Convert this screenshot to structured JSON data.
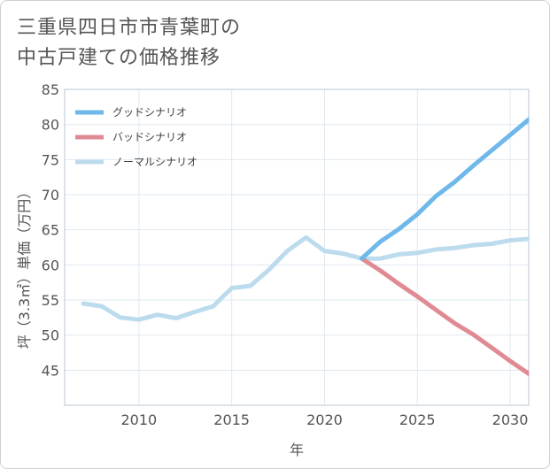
{
  "title": {
    "line1": "三重県四日市市青葉町の",
    "line2": "中古戸建ての価格推移"
  },
  "chart_data": {
    "type": "line",
    "xlabel": "年",
    "ylabel": "坪（3.3㎡）単価（万円）",
    "xlim": [
      2006,
      2031
    ],
    "ylim": [
      40,
      85
    ],
    "xticks": [
      2010,
      2015,
      2020,
      2025,
      2030
    ],
    "yticks": [
      45,
      50,
      55,
      60,
      65,
      70,
      75,
      80,
      85
    ],
    "grid": true,
    "legend_position": "top-left",
    "series": [
      {
        "name": "グッドシナリオ",
        "color": "#6fb8ea",
        "x": [
          2022,
          2023,
          2024,
          2025,
          2026,
          2027,
          2028,
          2029,
          2030,
          2031
        ],
        "y": [
          60.9,
          63.3,
          65.1,
          67.2,
          69.8,
          71.8,
          74.1,
          76.3,
          78.5,
          80.7
        ]
      },
      {
        "name": "バッドシナリオ",
        "color": "#e08b94",
        "x": [
          2022,
          2023,
          2024,
          2025,
          2026,
          2027,
          2028,
          2029,
          2030,
          2031
        ],
        "y": [
          60.9,
          59.2,
          57.3,
          55.5,
          53.6,
          51.7,
          50.1,
          48.2,
          46.3,
          44.5
        ]
      },
      {
        "name": "ノーマルシナリオ",
        "color": "#bcdcee",
        "x": [
          2007,
          2008,
          2009,
          2010,
          2011,
          2012,
          2013,
          2014,
          2015,
          2016,
          2017,
          2018,
          2019,
          2020,
          2021,
          2022,
          2023,
          2024,
          2025,
          2026,
          2027,
          2028,
          2029,
          2030,
          2031
        ],
        "y": [
          54.5,
          54.1,
          52.5,
          52.2,
          52.9,
          52.4,
          53.3,
          54.1,
          56.7,
          57.0,
          59.3,
          62.0,
          63.9,
          62.0,
          61.6,
          60.9,
          60.9,
          61.5,
          61.7,
          62.2,
          62.4,
          62.8,
          63.0,
          63.5,
          63.7
        ]
      }
    ]
  }
}
